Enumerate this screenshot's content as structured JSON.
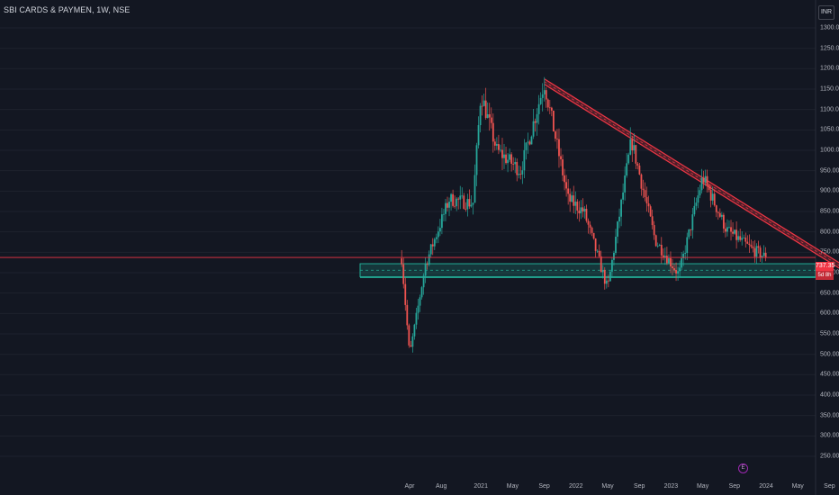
{
  "header": {
    "title": "SBI CARDS & PAYMEN, 1W, NSE",
    "currency": "INR"
  },
  "price_tag": {
    "value": "737.35",
    "sub": "5d 8h"
  },
  "earnings_marker": "E",
  "colors": {
    "background": "#131722",
    "grid": "#1e222d",
    "up": "#26a69a",
    "down": "#ef5350",
    "resistance": "#f23645",
    "support": "#22ab94",
    "price_line": "#f23645"
  },
  "chart_data": {
    "type": "candlestick",
    "title": "SBI CARDS & PAYMEN, 1W, NSE",
    "timeframe": "1W",
    "ylim": [
      235,
      1335
    ],
    "y_ticks": [
      "1300.00",
      "1250.00",
      "1200.00",
      "1150.00",
      "1100.00",
      "1050.00",
      "1000.00",
      "950.00",
      "900.00",
      "850.00",
      "800.00",
      "750.00",
      "700.00",
      "650.00",
      "600.00",
      "550.00",
      "500.00",
      "450.00",
      "400.00",
      "350.00",
      "300.00",
      "250.00"
    ],
    "x_ticks": [
      "Apr",
      "Aug",
      "2021",
      "May",
      "Sep",
      "2022",
      "May",
      "Sep",
      "2023",
      "May",
      "Sep",
      "2024",
      "May",
      "Sep"
    ],
    "last_price": 737.35,
    "key_points": [
      {
        "date": "2020-03",
        "close": 735
      },
      {
        "date": "2020-04",
        "low": 497
      },
      {
        "date": "2020-06",
        "close": 720
      },
      {
        "date": "2020-09",
        "close": 880
      },
      {
        "date": "2020-12",
        "close": 870
      },
      {
        "date": "2021-01",
        "high": 1140
      },
      {
        "date": "2021-03",
        "close": 1000
      },
      {
        "date": "2021-06",
        "close": 950
      },
      {
        "date": "2021-09",
        "high": 1165
      },
      {
        "date": "2021-12",
        "close": 880
      },
      {
        "date": "2022-02",
        "close": 850
      },
      {
        "date": "2022-05",
        "low": 660
      },
      {
        "date": "2022-08",
        "high": 1025
      },
      {
        "date": "2022-11",
        "close": 780
      },
      {
        "date": "2023-02",
        "low": 695
      },
      {
        "date": "2023-05",
        "high": 935
      },
      {
        "date": "2023-08",
        "close": 805
      },
      {
        "date": "2023-11",
        "close": 760
      },
      {
        "date": "2024-01",
        "close": 737.35
      }
    ],
    "annotations": [
      {
        "type": "descending_trendline",
        "from": {
          "date": "2021-09",
          "price": 1175
        },
        "to": {
          "date": "2024-11",
          "price": 715
        }
      },
      {
        "type": "support_zone",
        "from_price": 690,
        "to_price": 722
      }
    ]
  }
}
